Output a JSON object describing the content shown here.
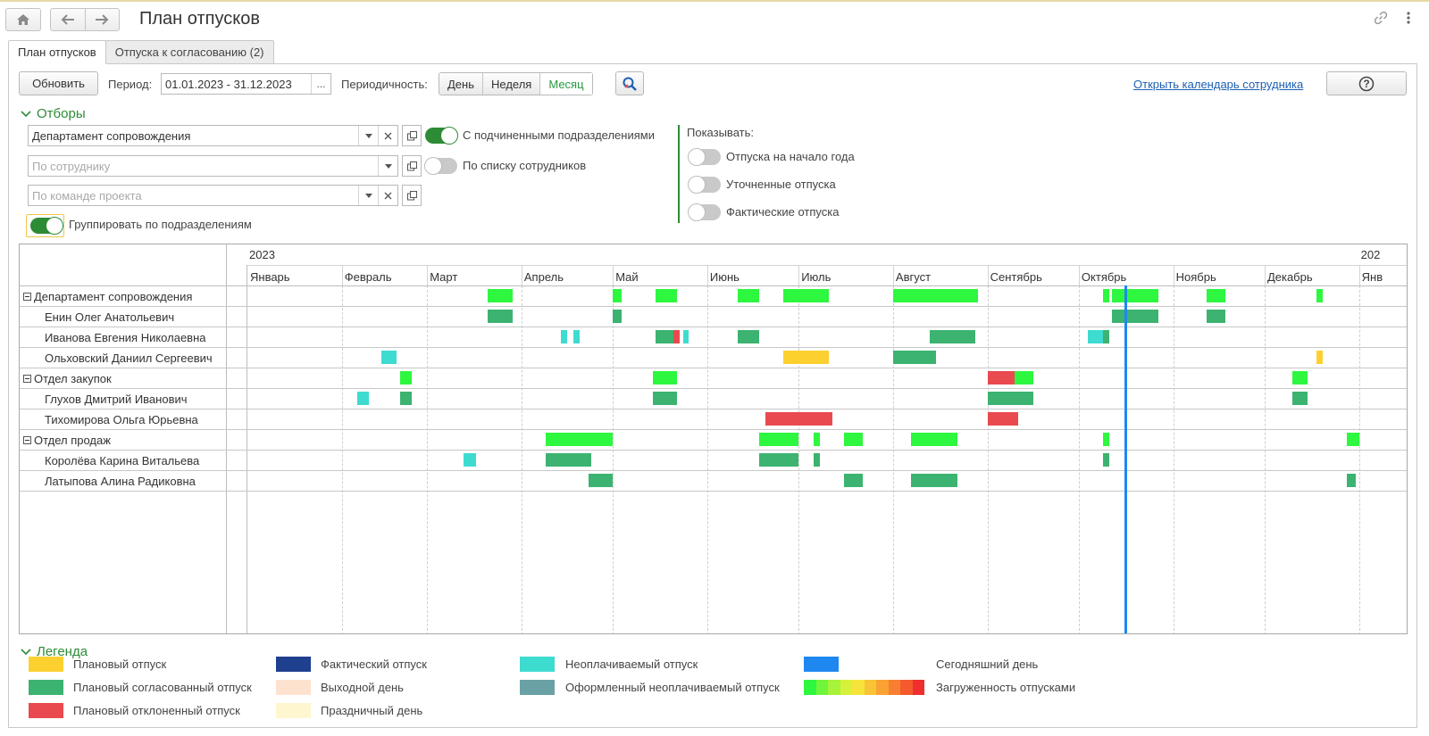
{
  "header": {
    "title": "План отпусков"
  },
  "tabs": [
    {
      "label": "План отпусков",
      "active": true
    },
    {
      "label": "Отпуска к согласованию (2)",
      "active": false
    }
  ],
  "toolbar": {
    "refresh": "Обновить",
    "period_label": "Период:",
    "period_value": "01.01.2023 - 31.12.2023",
    "period_btn": "...",
    "periodicity_label": "Периодичность:",
    "periodicity": [
      {
        "label": "День",
        "active": false
      },
      {
        "label": "Неделя",
        "active": false
      },
      {
        "label": "Месяц",
        "active": true
      }
    ],
    "open_calendar_link": "Открыть календарь сотрудника",
    "help": "?"
  },
  "filters": {
    "title": "Отборы",
    "department_value": "Департамент сопровождения",
    "employee_placeholder": "По сотруднику",
    "team_placeholder": "По команде проекта",
    "group_by_dept": {
      "label": "Группировать по подразделениям",
      "on": true
    },
    "with_subdivisions": {
      "label": "С подчиненными подразделениями",
      "on": true
    },
    "by_employee_list": {
      "label": "По списку сотрудников",
      "on": false
    },
    "show_label": "Показывать:",
    "show": [
      {
        "label": "Отпуска на начало года",
        "on": false
      },
      {
        "label": "Уточненные отпуска",
        "on": false
      },
      {
        "label": "Фактические отпуска",
        "on": false
      }
    ]
  },
  "gantt": {
    "year": "2023",
    "next_year": "202",
    "months": [
      "Январь",
      "Февраль",
      "Март",
      "Апрель",
      "Май",
      "Июнь",
      "Июль",
      "Август",
      "Сентябрь",
      "Октябрь",
      "Ноябрь",
      "Декабрь",
      "Янв"
    ],
    "month_days": [
      31,
      28,
      31,
      30,
      31,
      30,
      31,
      31,
      30,
      31,
      30,
      31,
      31
    ],
    "today_day_of_year": 289,
    "rows": [
      {
        "name": "Департамент сопровождения",
        "group": true,
        "bars": [
          [
            80,
            87,
            "bright"
          ],
          [
            121,
            123,
            "bright"
          ],
          [
            135,
            141,
            "bright"
          ],
          [
            162,
            168,
            "bright"
          ],
          [
            177,
            191,
            "bright"
          ],
          [
            213,
            240,
            "bright"
          ],
          [
            282,
            283,
            "bright"
          ],
          [
            285,
            299,
            "bright"
          ],
          [
            316,
            321,
            "bright"
          ],
          [
            352,
            353,
            "bright"
          ]
        ]
      },
      {
        "name": "Енин Олег Анатольевич",
        "group": false,
        "bars": [
          [
            80,
            87,
            "approved"
          ],
          [
            121,
            123,
            "approved"
          ],
          [
            285,
            299,
            "approved"
          ],
          [
            316,
            321,
            "approved"
          ]
        ]
      },
      {
        "name": "Иванова Евгения Николаевна",
        "group": false,
        "bars": [
          [
            104,
            105,
            "unpaid"
          ],
          [
            108,
            109,
            "unpaid"
          ],
          [
            135,
            141,
            "approved"
          ],
          [
            141,
            142,
            "rejected"
          ],
          [
            144,
            145,
            "unpaid"
          ],
          [
            162,
            168,
            "approved"
          ],
          [
            225,
            239,
            "approved"
          ],
          [
            277,
            282,
            "unpaid"
          ],
          [
            282,
            283,
            "approved"
          ]
        ]
      },
      {
        "name": "Ольховский Даниил Сергеевич",
        "group": false,
        "bars": [
          [
            45,
            49,
            "unpaid"
          ],
          [
            177,
            191,
            "planned"
          ],
          [
            213,
            226,
            "approved"
          ],
          [
            352,
            353,
            "planned"
          ]
        ]
      },
      {
        "name": "Отдел закупок",
        "group": true,
        "bars": [
          [
            51,
            54,
            "bright"
          ],
          [
            134,
            141,
            "bright"
          ],
          [
            244,
            253,
            "rejected"
          ],
          [
            253,
            258,
            "bright"
          ],
          [
            344,
            348,
            "bright"
          ]
        ]
      },
      {
        "name": "Глухов Дмитрий Иванович",
        "group": false,
        "bars": [
          [
            37,
            40,
            "unpaid"
          ],
          [
            51,
            54,
            "approved"
          ],
          [
            134,
            141,
            "approved"
          ],
          [
            244,
            258,
            "approved"
          ],
          [
            344,
            348,
            "approved"
          ]
        ]
      },
      {
        "name": "Тихомирова Ольга Юрьевна",
        "group": false,
        "bars": [
          [
            171,
            177,
            "rejected"
          ],
          [
            178,
            192,
            "rejected"
          ],
          [
            244,
            253,
            "rejected"
          ]
        ]
      },
      {
        "name": "Отдел продаж",
        "group": true,
        "bars": [
          [
            99,
            120,
            "bright"
          ],
          [
            169,
            181,
            "bright"
          ],
          [
            187,
            188,
            "bright"
          ],
          [
            197,
            202,
            "bright"
          ],
          [
            219,
            233,
            "bright"
          ],
          [
            282,
            283,
            "bright"
          ],
          [
            362,
            365,
            "bright"
          ]
        ]
      },
      {
        "name": "Королёва Карина Витальева",
        "group": false,
        "bars": [
          [
            72,
            75,
            "unpaid"
          ],
          [
            99,
            113,
            "approved"
          ],
          [
            169,
            181,
            "approved"
          ],
          [
            187,
            188,
            "approved"
          ],
          [
            282,
            283,
            "approved"
          ]
        ]
      },
      {
        "name": "Латыпова Алина Радиковна",
        "group": false,
        "bars": [
          [
            113,
            120,
            "approved"
          ],
          [
            197,
            202,
            "approved"
          ],
          [
            219,
            233,
            "approved"
          ],
          [
            362,
            364,
            "approved"
          ]
        ]
      }
    ]
  },
  "colors": {
    "planned": "#fcd12f",
    "approved": "#3cb371",
    "rejected": "#e84a4f",
    "actual": "#1f3f8f",
    "weekend": "#fde3cf",
    "holiday": "#fdf6cf",
    "unpaid": "#3edbd1",
    "unpaid_done": "#6aa1a5",
    "today": "#1e88f0",
    "bright": "#2df73f",
    "heat": [
      "#2df73f",
      "#6ff63a",
      "#a6f33a",
      "#d7f03a",
      "#f6e43a",
      "#f9c336",
      "#f9a233",
      "#f87f31",
      "#f45a2e",
      "#ef2e2e"
    ]
  },
  "legend": {
    "title": "Легенда",
    "items": [
      {
        "label": "Плановый отпуск",
        "color": "#fcd12f"
      },
      {
        "label": "Плановый согласованный отпуск",
        "color": "#3cb371"
      },
      {
        "label": "Плановый отклоненный отпуск",
        "color": "#e84a4f"
      },
      {
        "label": "Фактический отпуск",
        "color": "#1f3f8f"
      },
      {
        "label": "Выходной день",
        "color": "#fde3cf"
      },
      {
        "label": "Праздничный день",
        "color": "#fdf6cf"
      },
      {
        "label": "Неоплачиваемый отпуск",
        "color": "#3edbd1"
      },
      {
        "label": "Оформленный неоплачиваемый отпуск",
        "color": "#6aa1a5"
      },
      {
        "label": "Сегодняшний день",
        "color": "#1e88f0"
      },
      {
        "label": "Загруженность отпусками",
        "color": "heat"
      }
    ]
  }
}
